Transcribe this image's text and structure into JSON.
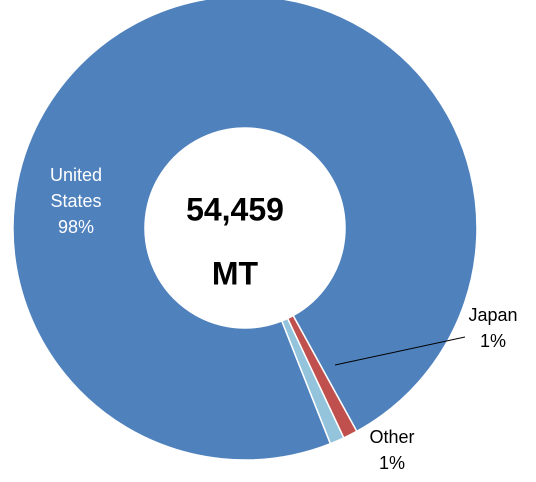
{
  "chart_data": {
    "type": "donut",
    "categories": [
      "United States",
      "Japan",
      "Other"
    ],
    "values": [
      98,
      1,
      1
    ],
    "value_labels": [
      "98%",
      "1%",
      "1%"
    ],
    "colors": [
      "#4f81bd",
      "#c0504d",
      "#93c4dc"
    ],
    "center_text": [
      "54,459",
      "MT"
    ]
  }
}
